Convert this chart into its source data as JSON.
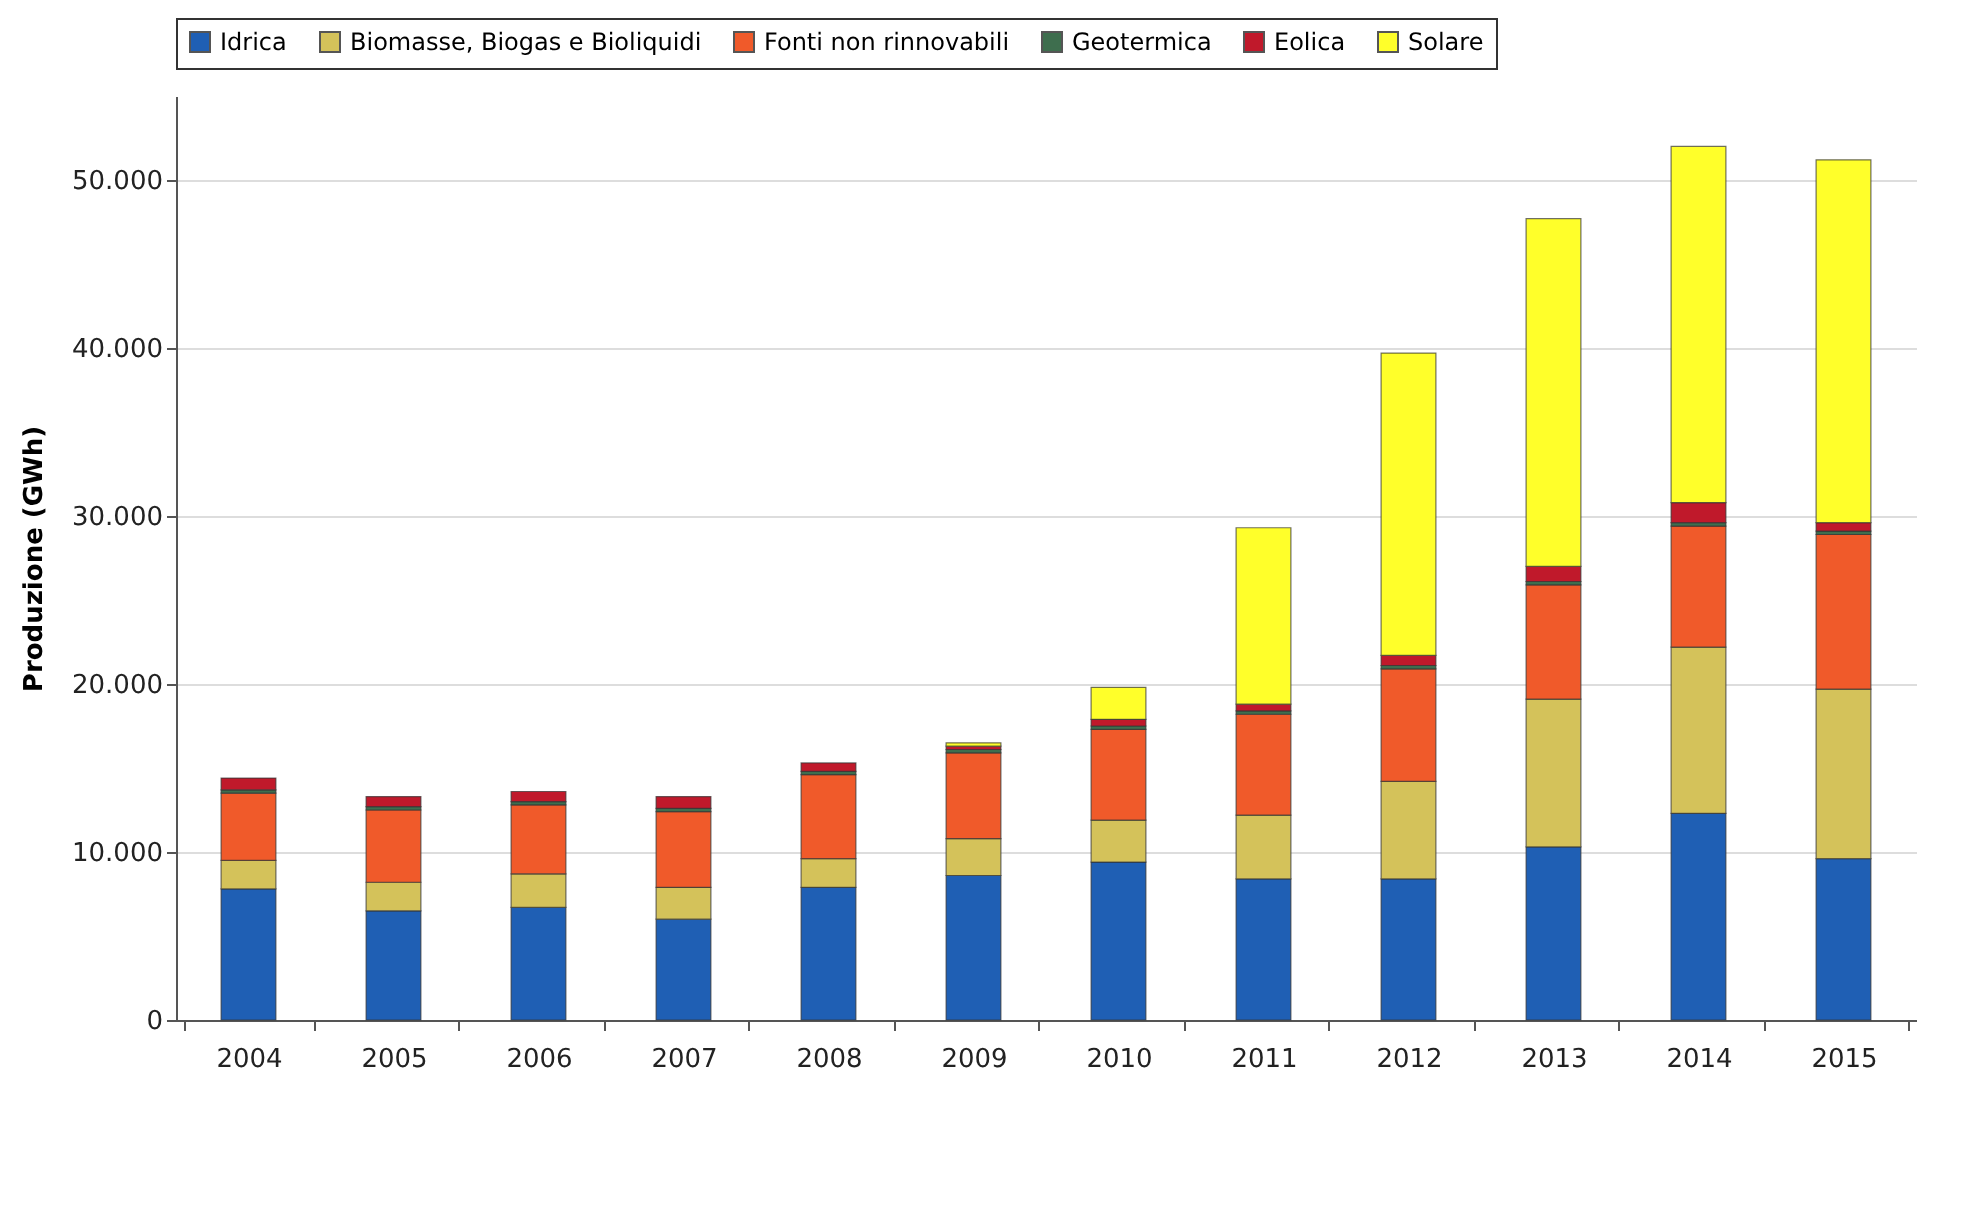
{
  "chart_data": {
    "type": "bar",
    "stacked": true,
    "ylabel": "Produzione (GWh)",
    "categories": [
      "2004",
      "2005",
      "2006",
      "2007",
      "2008",
      "2009",
      "2010",
      "2011",
      "2012",
      "2013",
      "2014",
      "2015"
    ],
    "series": [
      {
        "name": "Idrica",
        "color": "#1f5fb4",
        "values": [
          7800,
          6500,
          6700,
          6000,
          7900,
          8600,
          9400,
          8400,
          8400,
          10300,
          12300,
          9600
        ]
      },
      {
        "name": "Biomasse, Biogas e Bioliquidi",
        "color": "#d4c25a",
        "values": [
          1700,
          1700,
          2000,
          1900,
          1700,
          2200,
          2500,
          3800,
          5800,
          8800,
          9900,
          10100
        ]
      },
      {
        "name": "Fonti non rinnovabili",
        "color": "#f05a2a",
        "values": [
          4000,
          4300,
          4100,
          4500,
          5000,
          5100,
          5400,
          6000,
          6700,
          6800,
          7200,
          9200
        ]
      },
      {
        "name": "Geotermica",
        "color": "#3e6e4e",
        "values": [
          200,
          200,
          200,
          200,
          200,
          200,
          200,
          200,
          200,
          200,
          200,
          200
        ]
      },
      {
        "name": "Eolica",
        "color": "#c0192b",
        "values": [
          700,
          600,
          600,
          700,
          500,
          200,
          400,
          400,
          600,
          900,
          1200,
          500
        ]
      },
      {
        "name": "Solare",
        "color": "#ffff2a",
        "values": [
          null,
          null,
          null,
          null,
          null,
          200,
          1900,
          10500,
          18000,
          20700,
          21200,
          21600
        ]
      }
    ],
    "ylim": [
      0,
      55000
    ],
    "yticks": [
      0,
      {
        "value": 10000,
        "label": "10.000"
      },
      {
        "value": 20000,
        "label": "20.000"
      },
      {
        "value": 30000,
        "label": "30.000"
      },
      {
        "value": 40000,
        "label": "40.000"
      },
      {
        "value": 50000,
        "label": "50.000"
      }
    ],
    "grid": "y",
    "legend": "top"
  }
}
